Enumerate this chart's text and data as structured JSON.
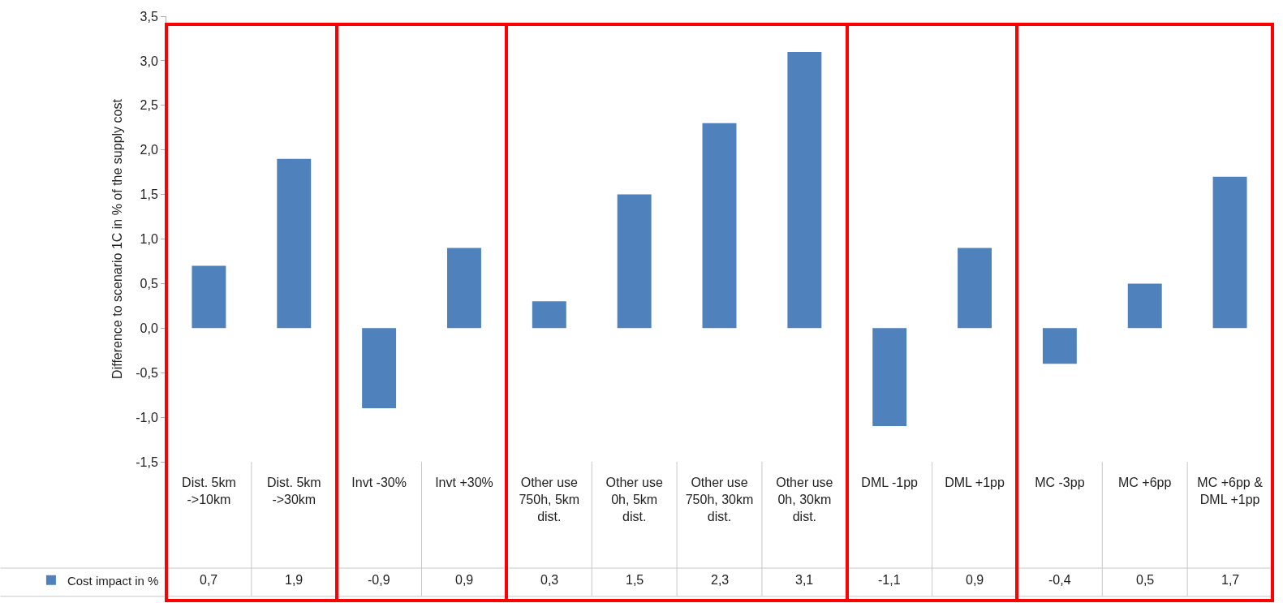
{
  "chart_data": {
    "type": "bar",
    "ylabel": "Difference to scenario 1C in % of the supply cost",
    "categories": [
      "Dist. 5km ->10km",
      "Dist. 5km ->30km",
      "Invt -30%",
      "Invt +30%",
      "Other use 750h, 5km dist.",
      "Other use 0h, 5km dist.",
      "Other use 750h, 30km dist.",
      "Other use 0h, 30km dist.",
      "DML -1pp",
      "DML +1pp",
      "MC -3pp",
      "MC +6pp",
      "MC +6pp & DML +1pp"
    ],
    "series": [
      {
        "name": "Cost impact in %",
        "color": "#4f81bd",
        "values": [
          0.7,
          1.9,
          -0.9,
          0.9,
          0.3,
          1.5,
          2.3,
          3.1,
          -1.1,
          0.9,
          -0.4,
          0.5,
          1.7
        ],
        "value_labels": [
          "0,7",
          "1,9",
          "-0,9",
          "0,9",
          "0,3",
          "1,5",
          "2,3",
          "3,1",
          "-1,1",
          "0,9",
          "-0,4",
          "0,5",
          "1,7"
        ]
      }
    ],
    "ylim": [
      -1.5,
      3.5
    ],
    "yticks": [
      {
        "value": -1.5,
        "label": "-1,5"
      },
      {
        "value": -1,
        "label": "-1,0"
      },
      {
        "value": -0.5,
        "label": "-0,5"
      },
      {
        "value": 0,
        "label": "0,0"
      },
      {
        "value": 0.5,
        "label": "0,5"
      },
      {
        "value": 1,
        "label": "1,0"
      },
      {
        "value": 1.5,
        "label": "1,5"
      },
      {
        "value": 2,
        "label": "2,0"
      },
      {
        "value": 2.5,
        "label": "2,5"
      },
      {
        "value": 3,
        "label": "3,0"
      },
      {
        "value": 3.5,
        "label": "3,5"
      }
    ],
    "grid": false,
    "legend": "bottom left"
  }
}
